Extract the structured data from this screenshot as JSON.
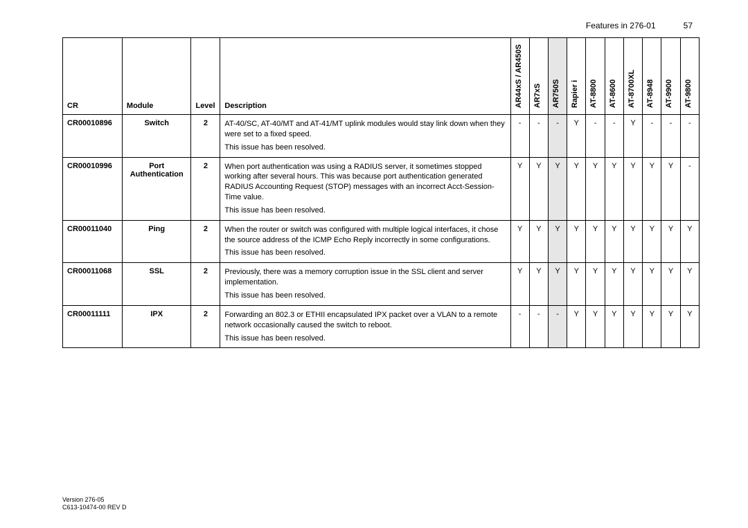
{
  "header": {
    "title": "Features in 276-01",
    "page_number": "57"
  },
  "footer": {
    "line1": "Version 276-05",
    "line2": "C613-10474-00 REV D"
  },
  "table": {
    "head": {
      "cr": "CR",
      "module": "Module",
      "level": "Level",
      "description": "Description"
    },
    "products": [
      "AR44xS / AR450S",
      "AR7xS",
      "AR750S",
      "Rapier i",
      "AT-8800",
      "AT-8600",
      "AT-8700XL",
      "AT-8948",
      "AT-9900",
      "AT-9800"
    ],
    "highlight_product_index": 2,
    "resolved_text": "This issue has been resolved.",
    "rows": [
      {
        "cr": "CR00010896",
        "module": "Switch",
        "level": "2",
        "desc": "AT-40/SC, AT-40/MT and AT-41/MT uplink modules would stay link down when they were set to a fixed speed.",
        "marks": [
          "-",
          "-",
          "-",
          "Y",
          "-",
          "-",
          "Y",
          "-",
          "-",
          "-"
        ]
      },
      {
        "cr": "CR00010996",
        "module": "Port Authentication",
        "level": "2",
        "desc": "When port authentication was using a RADIUS server, it sometimes stopped working after several hours. This was because port authentication generated RADIUS Accounting Request (STOP) messages with an incorrect Acct-Session-Time value.",
        "marks": [
          "Y",
          "Y",
          "Y",
          "Y",
          "Y",
          "Y",
          "Y",
          "Y",
          "Y",
          "-"
        ]
      },
      {
        "cr": "CR00011040",
        "module": "Ping",
        "level": "2",
        "desc": "When the router or switch was configured with multiple logical interfaces, it chose the source address of the ICMP Echo Reply incorrectly in some configurations.",
        "marks": [
          "Y",
          "Y",
          "Y",
          "Y",
          "Y",
          "Y",
          "Y",
          "Y",
          "Y",
          "Y"
        ]
      },
      {
        "cr": "CR00011068",
        "module": "SSL",
        "level": "2",
        "desc": "Previously, there was a memory corruption issue in the SSL client and server implementation.",
        "marks": [
          "Y",
          "Y",
          "Y",
          "Y",
          "Y",
          "Y",
          "Y",
          "Y",
          "Y",
          "Y"
        ]
      },
      {
        "cr": "CR00011111",
        "module": "IPX",
        "level": "2",
        "desc": "Forwarding an 802.3 or ETHII encapsulated IPX packet over a VLAN to a remote network occasionally caused the switch to reboot.",
        "marks": [
          "-",
          "-",
          "-",
          "Y",
          "Y",
          "Y",
          "Y",
          "Y",
          "Y",
          "Y"
        ]
      }
    ]
  }
}
